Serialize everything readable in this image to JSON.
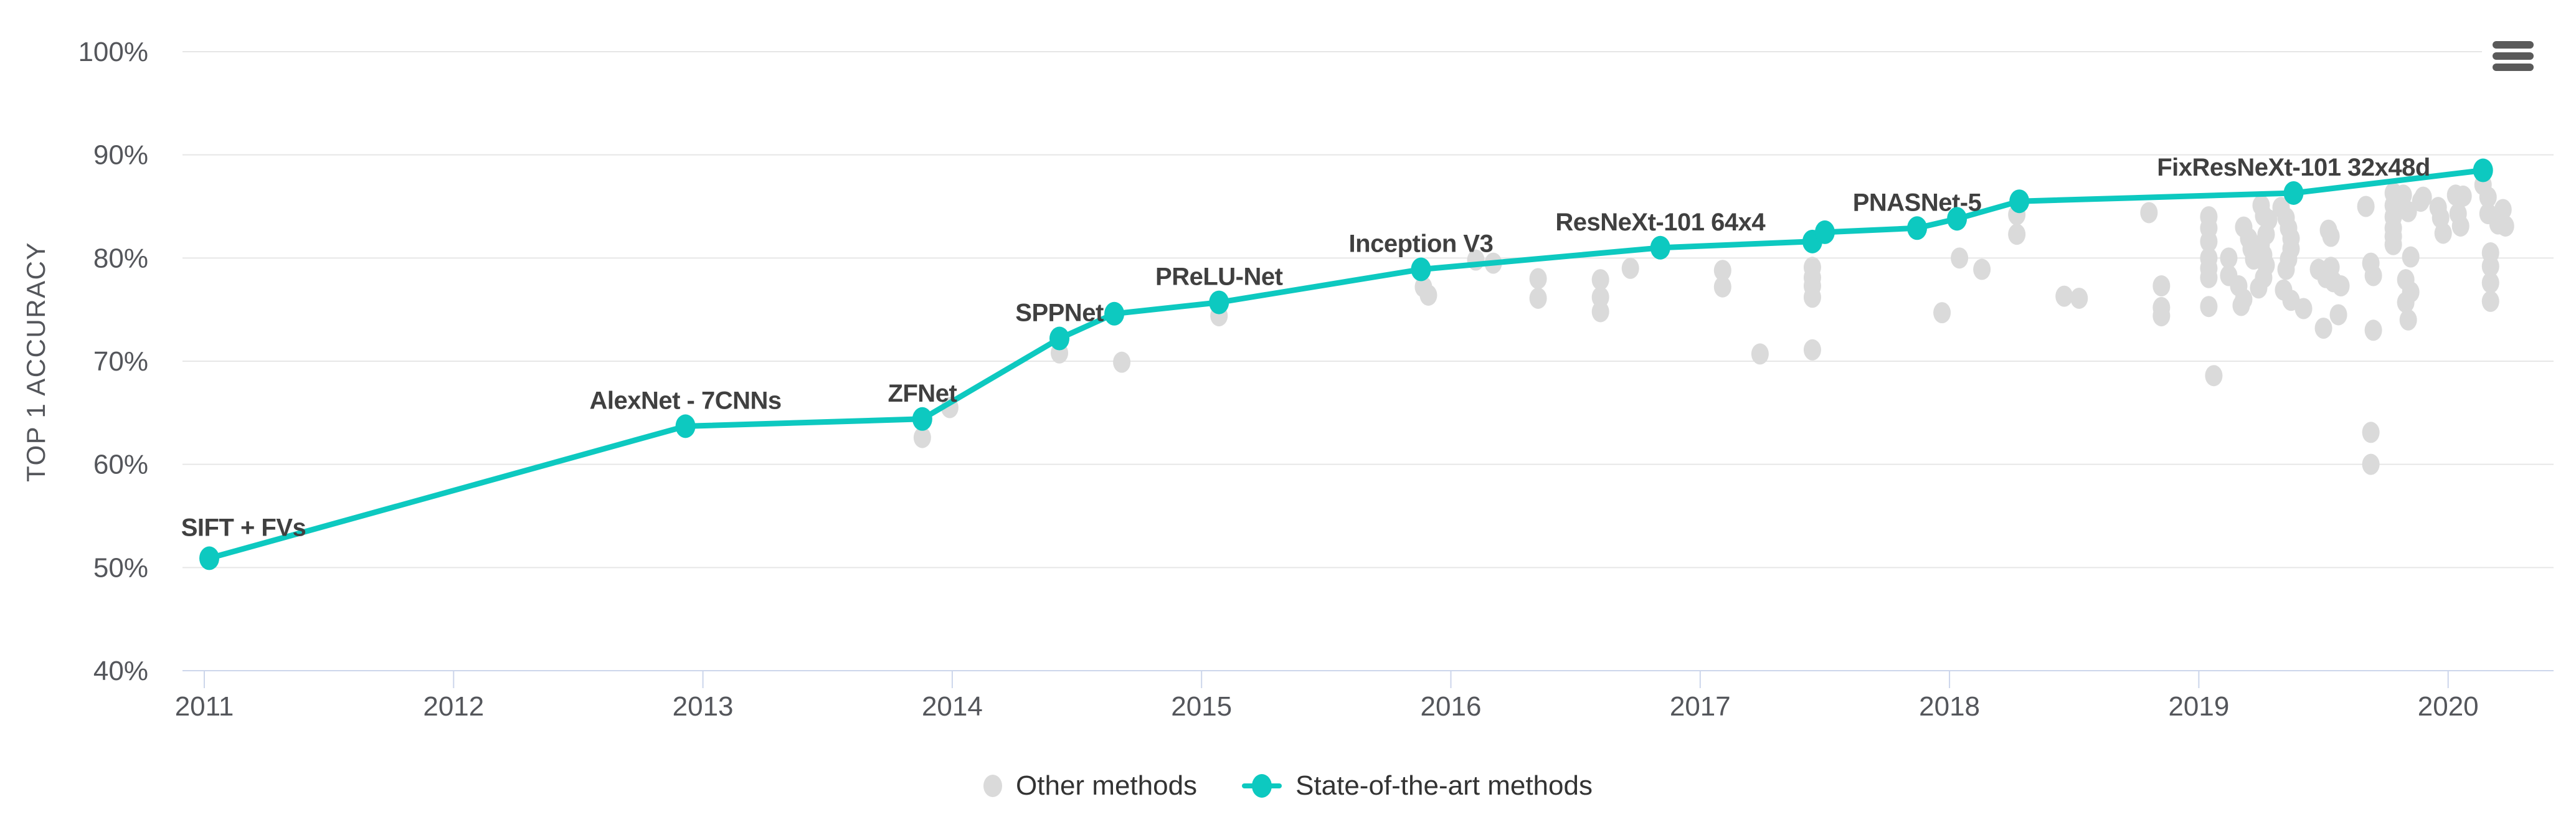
{
  "controls": {
    "menu_icon": "hamburger-icon"
  },
  "colors": {
    "sota": "#0dc9c0",
    "other": "#dadada",
    "gridline": "#e6e6e6",
    "axis_line": "#ccd6eb",
    "tick_text": "#54565B",
    "point_label_text": "#404040",
    "legend_text": "#333333",
    "menu_icon": "#5a5a5a"
  },
  "chart_data": {
    "type": "line+scatter",
    "title": "",
    "xlabel": "",
    "ylabel": "TOP 1 ACCURACY",
    "x_ticks": [
      2011,
      2012,
      2013,
      2014,
      2015,
      2016,
      2017,
      2018,
      2019,
      2020
    ],
    "y_ticks": [
      100,
      90,
      80,
      70,
      60,
      50,
      40
    ],
    "y_tick_suffix": "%",
    "xlim": [
      2010.9,
      2020.42
    ],
    "ylim": [
      40,
      100
    ],
    "grid": true,
    "legend_position": "bottom-center",
    "series": [
      {
        "name": "Other methods",
        "type": "scatter",
        "color": "#dadada",
        "points": [
          [
            2013.88,
            62.6
          ],
          [
            2013.99,
            65.5
          ],
          [
            2014.43,
            70.8
          ],
          [
            2014.68,
            69.9
          ],
          [
            2015.07,
            74.4
          ],
          [
            2015.89,
            77.2
          ],
          [
            2015.91,
            76.4
          ],
          [
            2016.1,
            79.8
          ],
          [
            2016.17,
            79.5
          ],
          [
            2016.35,
            78.0
          ],
          [
            2016.35,
            76.1
          ],
          [
            2016.6,
            77.9
          ],
          [
            2016.6,
            76.2
          ],
          [
            2016.6,
            74.8
          ],
          [
            2016.72,
            79.0
          ],
          [
            2017.09,
            78.8
          ],
          [
            2017.09,
            77.2
          ],
          [
            2017.24,
            70.7
          ],
          [
            2017.45,
            79.1
          ],
          [
            2017.45,
            78.1
          ],
          [
            2017.45,
            77.3
          ],
          [
            2017.45,
            76.2
          ],
          [
            2017.45,
            71.1
          ],
          [
            2017.97,
            74.7
          ],
          [
            2018.04,
            80.0
          ],
          [
            2018.13,
            78.9
          ],
          [
            2018.27,
            84.2
          ],
          [
            2018.27,
            82.3
          ],
          [
            2018.46,
            76.3
          ],
          [
            2018.52,
            76.1
          ],
          [
            2018.8,
            84.4
          ],
          [
            2018.85,
            77.3
          ],
          [
            2018.85,
            75.2
          ],
          [
            2018.85,
            74.4
          ],
          [
            2019.04,
            84.0
          ],
          [
            2019.04,
            82.9
          ],
          [
            2019.04,
            81.6
          ],
          [
            2019.04,
            80.0
          ],
          [
            2019.04,
            79.0
          ],
          [
            2019.04,
            78.1
          ],
          [
            2019.04,
            75.3
          ],
          [
            2019.06,
            68.6
          ],
          [
            2019.12,
            80.0
          ],
          [
            2019.12,
            78.3
          ],
          [
            2019.16,
            77.3
          ],
          [
            2019.17,
            75.4
          ],
          [
            2019.18,
            76.0
          ],
          [
            2019.18,
            83.0
          ],
          [
            2019.2,
            81.9
          ],
          [
            2019.21,
            80.9
          ],
          [
            2019.22,
            79.9
          ],
          [
            2019.25,
            85.1
          ],
          [
            2019.26,
            84.1
          ],
          [
            2019.28,
            83.7
          ],
          [
            2019.27,
            82.3
          ],
          [
            2019.25,
            81.3
          ],
          [
            2019.26,
            80.3
          ],
          [
            2019.27,
            79.3
          ],
          [
            2019.26,
            78.1
          ],
          [
            2019.24,
            77.1
          ],
          [
            2019.33,
            84.9
          ],
          [
            2019.35,
            83.9
          ],
          [
            2019.36,
            82.9
          ],
          [
            2019.37,
            81.9
          ],
          [
            2019.37,
            80.9
          ],
          [
            2019.36,
            79.9
          ],
          [
            2019.35,
            78.9
          ],
          [
            2019.34,
            76.9
          ],
          [
            2019.37,
            75.9
          ],
          [
            2019.42,
            75.1
          ],
          [
            2019.48,
            78.9
          ],
          [
            2019.5,
            73.2
          ],
          [
            2019.52,
            82.7
          ],
          [
            2019.53,
            82.1
          ],
          [
            2019.53,
            79.1
          ],
          [
            2019.51,
            78.1
          ],
          [
            2019.54,
            77.7
          ],
          [
            2019.57,
            77.3
          ],
          [
            2019.56,
            74.5
          ],
          [
            2019.67,
            85.0
          ],
          [
            2019.69,
            79.5
          ],
          [
            2019.7,
            78.3
          ],
          [
            2019.7,
            73.0
          ],
          [
            2019.69,
            63.1
          ],
          [
            2019.69,
            60.0
          ],
          [
            2019.78,
            86.3
          ],
          [
            2019.78,
            85.1
          ],
          [
            2019.78,
            84.0
          ],
          [
            2019.78,
            82.9
          ],
          [
            2019.78,
            82.1
          ],
          [
            2019.78,
            81.3
          ],
          [
            2019.82,
            86.1
          ],
          [
            2019.84,
            84.5
          ],
          [
            2019.85,
            80.1
          ],
          [
            2019.83,
            77.9
          ],
          [
            2019.85,
            76.7
          ],
          [
            2019.83,
            75.7
          ],
          [
            2019.84,
            74.0
          ],
          [
            2019.89,
            85.5
          ],
          [
            2019.9,
            85.9
          ],
          [
            2019.96,
            84.9
          ],
          [
            2019.97,
            83.9
          ],
          [
            2019.98,
            82.4
          ],
          [
            2020.03,
            86.1
          ],
          [
            2020.04,
            84.3
          ],
          [
            2020.05,
            83.1
          ],
          [
            2020.06,
            86.0
          ],
          [
            2020.14,
            87.1
          ],
          [
            2020.16,
            85.9
          ],
          [
            2020.16,
            84.3
          ],
          [
            2020.17,
            80.5
          ],
          [
            2020.17,
            79.2
          ],
          [
            2020.17,
            77.6
          ],
          [
            2020.17,
            75.8
          ],
          [
            2020.2,
            83.3
          ],
          [
            2020.22,
            84.7
          ],
          [
            2020.23,
            83.1
          ]
        ]
      },
      {
        "name": "State-of-the-art methods",
        "type": "line+marker",
        "color": "#0dc9c0",
        "points": [
          {
            "x": 2011.02,
            "y": 50.9,
            "label": "SIFT + FVs",
            "label_dx": 55,
            "label_dy": -36
          },
          {
            "x": 2012.93,
            "y": 63.7,
            "label": "AlexNet - 7CNNs"
          },
          {
            "x": 2013.88,
            "y": 64.4,
            "label": "ZFNet"
          },
          {
            "x": 2014.43,
            "y": 72.2,
            "label": "SPPNet"
          },
          {
            "x": 2014.65,
            "y": 74.6
          },
          {
            "x": 2015.07,
            "y": 75.7,
            "label": "PReLU-Net"
          },
          {
            "x": 2015.88,
            "y": 78.9,
            "label": "Inception V3"
          },
          {
            "x": 2016.84,
            "y": 81.0,
            "label": "ResNeXt-101 64x4"
          },
          {
            "x": 2017.45,
            "y": 81.6
          },
          {
            "x": 2017.5,
            "y": 82.5
          },
          {
            "x": 2017.87,
            "y": 82.9,
            "label": "PNASNet-5"
          },
          {
            "x": 2018.03,
            "y": 83.8
          },
          {
            "x": 2018.28,
            "y": 85.5
          },
          {
            "x": 2019.38,
            "y": 86.3,
            "label": "FixResNeXt-101 32x48d"
          },
          {
            "x": 2020.14,
            "y": 88.5
          }
        ]
      }
    ]
  }
}
